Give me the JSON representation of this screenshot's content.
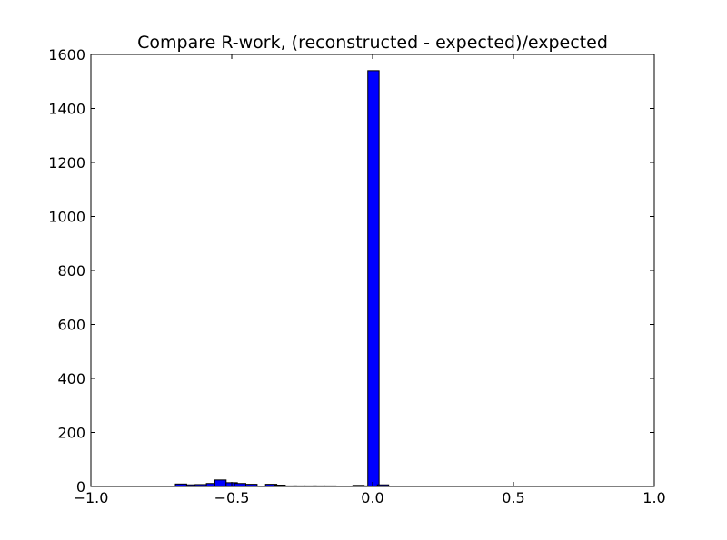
{
  "chart_data": {
    "type": "bar",
    "title": "Compare R-work, (reconstructed - expected)/expected",
    "xlabel": "",
    "ylabel": "",
    "xlim": [
      -1.0,
      1.0
    ],
    "ylim": [
      0,
      1600
    ],
    "bin_width": 0.04,
    "x_ticks": [
      -1.0,
      -0.5,
      0.0,
      0.5,
      1.0
    ],
    "x_tick_labels": [
      "−1.0",
      "−0.5",
      "0.0",
      "0.5",
      "1.0"
    ],
    "y_ticks": [
      0,
      200,
      400,
      600,
      800,
      1000,
      1200,
      1400,
      1600
    ],
    "y_tick_labels": [
      "0",
      "200",
      "400",
      "600",
      "800",
      "1000",
      "1200",
      "1400",
      "1600"
    ],
    "bar_color": "#0000ff",
    "edge_color": "#000000",
    "grid": false,
    "series": [
      {
        "bins": [
          {
            "x0": -0.7,
            "count": 9
          },
          {
            "x0": -0.66,
            "count": 6
          },
          {
            "x0": -0.63,
            "count": 7
          },
          {
            "x0": -0.59,
            "count": 11
          },
          {
            "x0": -0.56,
            "count": 24
          },
          {
            "x0": -0.52,
            "count": 14
          },
          {
            "x0": -0.49,
            "count": 11
          },
          {
            "x0": -0.45,
            "count": 8
          },
          {
            "x0": -0.38,
            "count": 8
          },
          {
            "x0": -0.35,
            "count": 5
          },
          {
            "x0": -0.31,
            "count": 2
          },
          {
            "x0": -0.28,
            "count": 2
          },
          {
            "x0": -0.24,
            "count": 2
          },
          {
            "x0": -0.21,
            "count": 2
          },
          {
            "x0": -0.17,
            "count": 2
          },
          {
            "x0": -0.07,
            "count": 4
          },
          {
            "x0": -0.03,
            "count": 2
          },
          {
            "x0": -0.017,
            "count": 1540
          },
          {
            "x0": 0.017,
            "count": 6
          }
        ]
      }
    ]
  }
}
